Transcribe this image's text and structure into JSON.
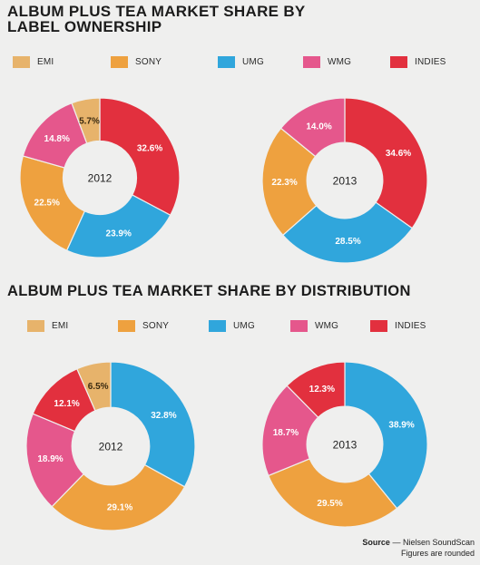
{
  "colors": {
    "EMI": "#e7b36b",
    "SONY": "#eea13f",
    "UMG": "#30a6dc",
    "WMG": "#e5578c",
    "INDIES": "#e2303e"
  },
  "source": {
    "label": "Source",
    "text": " — Nielsen SoundScan",
    "note": "Figures are rounded"
  },
  "chart_data": [
    {
      "type": "pie",
      "title": "ALBUM PLUS TEA MARKET SHARE BY LABEL OWNERSHIP",
      "legend": [
        "EMI",
        "SONY",
        "UMG",
        "WMG",
        "INDIES"
      ],
      "donuts": [
        {
          "center_label": "2012",
          "slices": [
            {
              "name": "INDIES",
              "value": 32.6,
              "label": "32.6%"
            },
            {
              "name": "UMG",
              "value": 23.9,
              "label": "23.9%"
            },
            {
              "name": "SONY",
              "value": 22.5,
              "label": "22.5%"
            },
            {
              "name": "WMG",
              "value": 14.8,
              "label": "14.8%"
            },
            {
              "name": "EMI",
              "value": 5.7,
              "label": "5.7%"
            }
          ]
        },
        {
          "center_label": "2013",
          "slices": [
            {
              "name": "INDIES",
              "value": 34.6,
              "label": "34.6%"
            },
            {
              "name": "UMG",
              "value": 28.5,
              "label": "28.5%"
            },
            {
              "name": "SONY",
              "value": 22.3,
              "label": "22.3%"
            },
            {
              "name": "WMG",
              "value": 14.0,
              "label": "14.0%"
            }
          ]
        }
      ]
    },
    {
      "type": "pie",
      "title": "ALBUM PLUS TEA MARKET SHARE BY DISTRIBUTION",
      "legend": [
        "EMI",
        "SONY",
        "UMG",
        "WMG",
        "INDIES"
      ],
      "donuts": [
        {
          "center_label": "2012",
          "slices": [
            {
              "name": "UMG",
              "value": 32.8,
              "label": "32.8%"
            },
            {
              "name": "SONY",
              "value": 29.1,
              "label": "29.1%"
            },
            {
              "name": "WMG",
              "value": 18.9,
              "label": "18.9%"
            },
            {
              "name": "INDIES",
              "value": 12.1,
              "label": "12.1%"
            },
            {
              "name": "EMI",
              "value": 6.5,
              "label": "6.5%"
            }
          ]
        },
        {
          "center_label": "2013",
          "slices": [
            {
              "name": "UMG",
              "value": 38.9,
              "label": "38.9%"
            },
            {
              "name": "SONY",
              "value": 29.5,
              "label": "29.5%"
            },
            {
              "name": "WMG",
              "value": 18.7,
              "label": "18.7%"
            },
            {
              "name": "INDIES",
              "value": 12.3,
              "label": "12.3%"
            }
          ]
        }
      ]
    }
  ]
}
